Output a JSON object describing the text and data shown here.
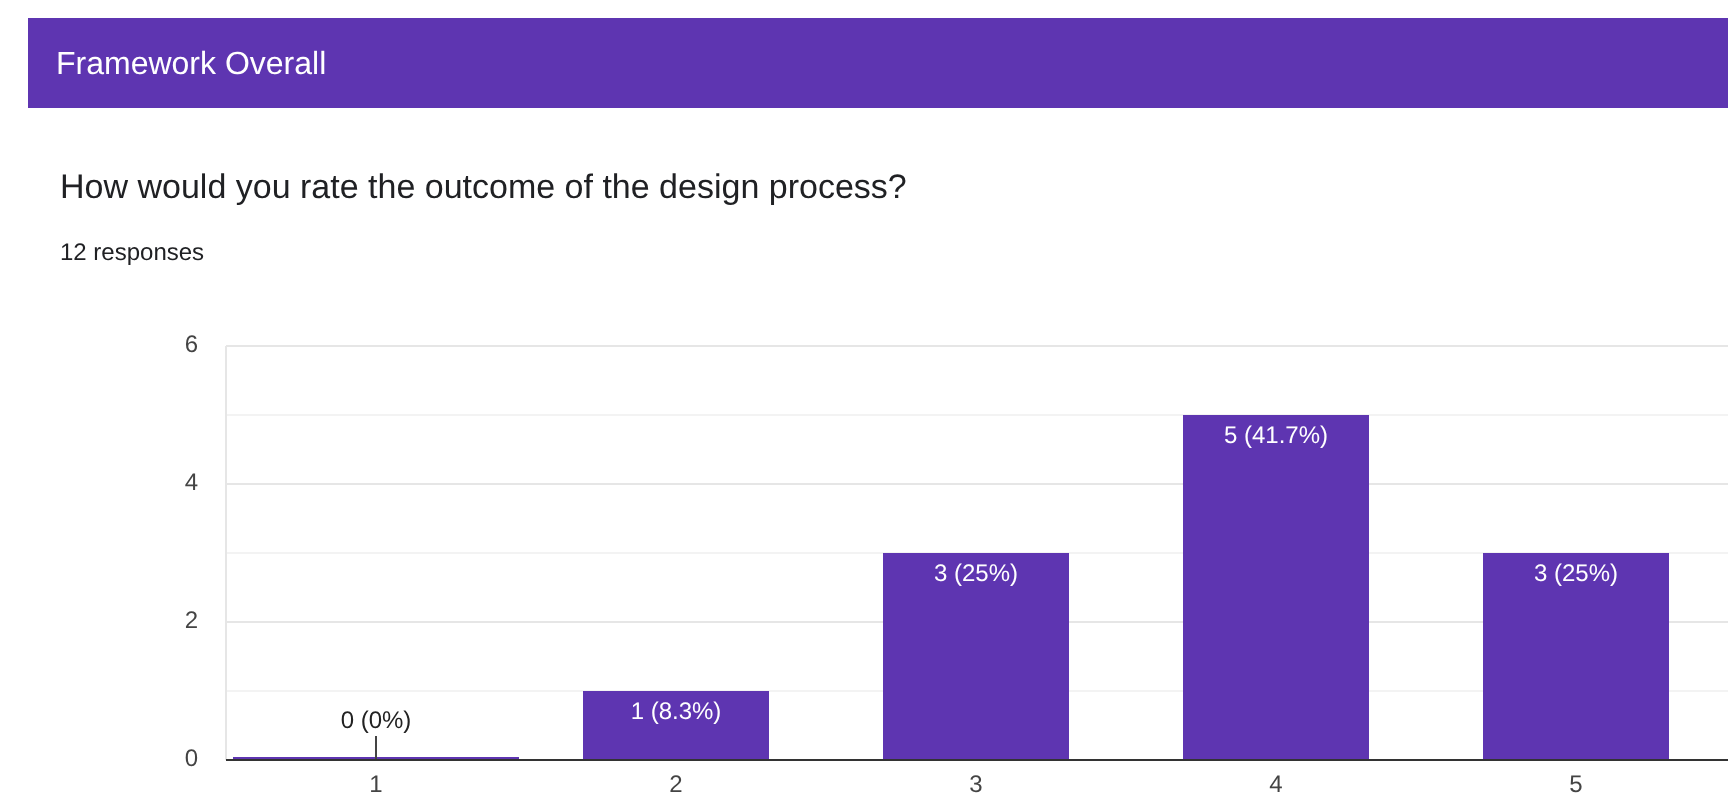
{
  "chart_data": {
    "type": "bar",
    "title": "How would you rate the outcome of the design process?",
    "subtitle": "12 responses",
    "annotations": [
      "Framework Overall"
    ],
    "categories": [
      "1",
      "2",
      "3",
      "4",
      "5"
    ],
    "values": [
      0,
      1,
      3,
      5,
      3
    ],
    "value_labels": [
      "0 (0%)",
      "1 (8.3%)",
      "3 (25%)",
      "5 (41.7%)",
      "3 (25%)"
    ],
    "color": "#5e35b1",
    "ylim": [
      0,
      6
    ],
    "yticks": [
      0,
      {
        "value": 1,
        "label": null
      },
      2,
      {
        "value": 3,
        "label": null
      },
      4,
      {
        "value": 5,
        "label": null
      },
      6
    ],
    "grid": true
  }
}
